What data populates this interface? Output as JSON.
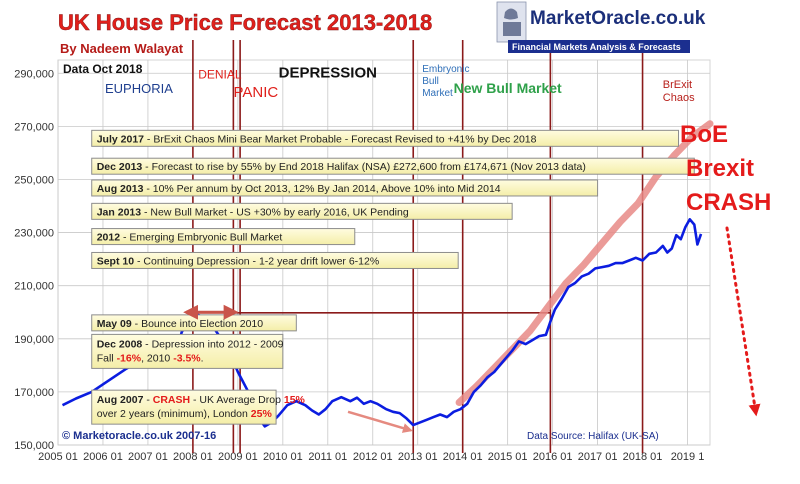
{
  "chart_data": {
    "type": "line",
    "title": "UK House Price Forecast 2013-2018",
    "subtitle": "By Nadeem Walayat",
    "data_label": "Data Oct 2018",
    "brand": {
      "name": "MarketOracle.co.uk",
      "tagline": "Financial Markets Analysis & Forecasts"
    },
    "copyright": "© Marketoracle.co.uk 2007-16",
    "source": "Data Source: Halifax (UK-SA)",
    "ylim": [
      150000,
      295000
    ],
    "xlim": [
      2005.0,
      2019.5
    ],
    "y_ticks": [
      {
        "value": 150000,
        "label": "150,000"
      },
      {
        "value": 170000,
        "label": "170,000"
      },
      {
        "value": 190000,
        "label": "190,000"
      },
      {
        "value": 210000,
        "label": "210,000"
      },
      {
        "value": 230000,
        "label": "230,000"
      },
      {
        "value": 250000,
        "label": "250,000"
      },
      {
        "value": 270000,
        "label": "270,000"
      },
      {
        "value": 290000,
        "label": "290,000"
      }
    ],
    "x_ticks": [
      {
        "value": 2005,
        "label": "2005 01"
      },
      {
        "value": 2006,
        "label": "2006 01"
      },
      {
        "value": 2007,
        "label": "2007 01"
      },
      {
        "value": 2008,
        "label": "2008 01"
      },
      {
        "value": 2009,
        "label": "2009 01"
      },
      {
        "value": 2010,
        "label": "2010 01"
      },
      {
        "value": 2011,
        "label": "2011 01"
      },
      {
        "value": 2012,
        "label": "2012 01"
      },
      {
        "value": 2013,
        "label": "2013 01"
      },
      {
        "value": 2014,
        "label": "2014 01"
      },
      {
        "value": 2015,
        "label": "2015 01"
      },
      {
        "value": 2016,
        "label": "2016 01"
      },
      {
        "value": 2017,
        "label": "2017 01"
      },
      {
        "value": 2018,
        "label": "2018 01"
      },
      {
        "value": 2019,
        "label": "2019 1"
      }
    ],
    "phase_lines": [
      2008.0,
      2008.9,
      2009.05,
      2012.9,
      2014.0,
      2015.95,
      2018.0
    ],
    "phases": [
      {
        "label": "EUPHORIA",
        "x": 2006.8,
        "y": 282500,
        "color": "#1f3f8f",
        "size": 13,
        "weight": "normal"
      },
      {
        "label": "DENIAL",
        "x": 2008.6,
        "y": 288000,
        "color": "#e0201b",
        "size": 12,
        "weight": "normal"
      },
      {
        "label": "PANIC",
        "x": 2009.4,
        "y": 281000,
        "color": "#e0201b",
        "size": 15,
        "weight": "normal"
      },
      {
        "label": "DEPRESSION",
        "x": 2011.0,
        "y": 288500,
        "color": "#111111",
        "size": 15,
        "weight": "bold"
      },
      {
        "label": "New Bull Market",
        "x": 2015.0,
        "y": 282500,
        "color": "#2fa14a",
        "size": 14,
        "weight": "bold"
      }
    ],
    "phase_multiline": [
      {
        "lines": [
          "Embryonic",
          "Bull",
          "Market"
        ],
        "x": 2013.1,
        "y": 290500,
        "color": "#2f6fb8",
        "size": 10
      },
      {
        "lines": [
          "BrExit",
          "Chaos"
        ],
        "x": 2018.45,
        "y": 284500,
        "color": "#b8201b",
        "size": 11
      }
    ],
    "annotations": [
      {
        "date": "July 2017",
        "text": " - BrExit Chaos Mini Bear Market Probable - Forecast Revised to +41% by Dec 2018",
        "date_color": "#111111",
        "y": 265500,
        "x0": 2005.75,
        "x1": 2018.8
      },
      {
        "date": "Dec 2013",
        "text": " - Forecast to rise by 55% by End 2018 Halifax (NSA) £272,600 from £174,671 (Nov 2013 data)",
        "date_color": "#111111",
        "y": 255000,
        "x0": 2005.75,
        "x1": 2019.15
      },
      {
        "date": "Aug 2013",
        "text": " - 10% Per annum by Oct 2013, 12% By Jan 2014, Above 10% into Mid 2014",
        "date_color": "#111111",
        "y": 246800,
        "x0": 2005.75,
        "x1": 2017.0
      },
      {
        "date": "Jan 2013",
        "text": " - New Bull Market - US +30% by early 2016, UK Pending",
        "date_color": "#111111",
        "y": 238000,
        "x0": 2005.75,
        "x1": 2015.1
      },
      {
        "date": "2012",
        "text": " - Emerging Embryonic Bull Market",
        "date_color": "#111111",
        "y": 228500,
        "x0": 2005.75,
        "x1": 2011.6
      },
      {
        "date": "Sept 10",
        "text": " -  Continuing Depression - 1-2 year drift lower 6-12%",
        "date_color": "#111111",
        "y": 219500,
        "x0": 2005.75,
        "x1": 2013.9
      },
      {
        "date": "May 09",
        "text": " - Bounce into Election 2010",
        "date_color": "#111111",
        "y": 196000,
        "x0": 2005.75,
        "x1": 2010.3
      }
    ],
    "box_dec2008": {
      "line1_date": "Dec 2008",
      "line1_text": " - Depression into 2012 - 2009",
      "line2_a": "Fall ",
      "line2_b": "-16%",
      "line2_c": ", 2010 ",
      "line2_d": "-3.5%",
      "line2_e": ".",
      "y1": 186000,
      "y2": 178500
    },
    "box_aug2007": {
      "line1_date": "Aug 2007",
      "line1_a": " - ",
      "line1_b": "CRASH",
      "line1_c": " - UK Average Drop ",
      "line1_d": "15%",
      "line2_a": "over 2 years  (minimum), London ",
      "line2_b": "25%",
      "y1": 165500,
      "y2": 158800
    },
    "boe_crash": {
      "lines": [
        "BoE",
        "Brexit",
        "CRASH"
      ],
      "color": "#e41b1b"
    },
    "colors": {
      "actual": "#0b1de0",
      "forecast": "#e78a86",
      "phase_line": "#8b1a1a",
      "box_fill": "#fbf7cf",
      "box_border": "#8c8c8c",
      "crash": "#e41b1b",
      "grid": "#c8c8c8"
    },
    "series": [
      {
        "name": "Halifax House Price (UK-SA)",
        "points": [
          [
            2005.1,
            165000
          ],
          [
            2005.4,
            167500
          ],
          [
            2005.75,
            170000
          ],
          [
            2006.1,
            174000
          ],
          [
            2006.5,
            178500
          ],
          [
            2006.9,
            182500
          ],
          [
            2007.3,
            186000
          ],
          [
            2007.55,
            188500
          ],
          [
            2007.65,
            186000
          ],
          [
            2007.75,
            192500
          ],
          [
            2007.9,
            196800
          ],
          [
            2008.05,
            199500
          ],
          [
            2008.25,
            198000
          ],
          [
            2008.45,
            194500
          ],
          [
            2008.65,
            189500
          ],
          [
            2008.85,
            183500
          ],
          [
            2009.0,
            177500
          ],
          [
            2009.2,
            171000
          ],
          [
            2009.35,
            165500
          ],
          [
            2009.45,
            160500
          ],
          [
            2009.6,
            157000
          ],
          [
            2009.75,
            158500
          ],
          [
            2009.9,
            161000
          ],
          [
            2010.1,
            165000
          ],
          [
            2010.3,
            166500
          ],
          [
            2010.5,
            165000
          ],
          [
            2010.65,
            163000
          ],
          [
            2010.8,
            161500
          ],
          [
            2010.95,
            163500
          ],
          [
            2011.1,
            166500
          ],
          [
            2011.3,
            168000
          ],
          [
            2011.5,
            166500
          ],
          [
            2011.65,
            167800
          ],
          [
            2011.8,
            165500
          ],
          [
            2011.95,
            166500
          ],
          [
            2012.1,
            165500
          ],
          [
            2012.3,
            163500
          ],
          [
            2012.45,
            162500
          ],
          [
            2012.6,
            162000
          ],
          [
            2012.75,
            160000
          ],
          [
            2012.9,
            157500
          ],
          [
            2013.05,
            158500
          ],
          [
            2013.2,
            159500
          ],
          [
            2013.35,
            160500
          ],
          [
            2013.5,
            161500
          ],
          [
            2013.65,
            160500
          ],
          [
            2013.8,
            162500
          ],
          [
            2013.95,
            163500
          ],
          [
            2014.1,
            165500
          ],
          [
            2014.25,
            170000
          ],
          [
            2014.4,
            172500
          ],
          [
            2014.55,
            175500
          ],
          [
            2014.7,
            177500
          ],
          [
            2014.85,
            180500
          ],
          [
            2014.95,
            182500
          ],
          [
            2015.1,
            185500
          ],
          [
            2015.25,
            189000
          ],
          [
            2015.4,
            188000
          ],
          [
            2015.55,
            189500
          ],
          [
            2015.7,
            191000
          ],
          [
            2015.85,
            191500
          ],
          [
            2015.95,
            196500
          ],
          [
            2016.05,
            201000
          ],
          [
            2016.2,
            205000
          ],
          [
            2016.35,
            209500
          ],
          [
            2016.5,
            211000
          ],
          [
            2016.65,
            213500
          ],
          [
            2016.8,
            214500
          ],
          [
            2016.95,
            216500
          ],
          [
            2017.1,
            217000
          ],
          [
            2017.25,
            217500
          ],
          [
            2017.4,
            218500
          ],
          [
            2017.55,
            218500
          ],
          [
            2017.7,
            219500
          ],
          [
            2017.85,
            220500
          ],
          [
            2018.0,
            219500
          ],
          [
            2018.15,
            222000
          ],
          [
            2018.3,
            222500
          ],
          [
            2018.45,
            225000
          ],
          [
            2018.55,
            222500
          ],
          [
            2018.65,
            224000
          ],
          [
            2018.75,
            229000
          ],
          [
            2018.85,
            227500
          ],
          [
            2018.95,
            232000
          ],
          [
            2019.05,
            235000
          ],
          [
            2019.15,
            233000
          ],
          [
            2019.22,
            225500
          ],
          [
            2019.3,
            229500
          ]
        ]
      }
    ],
    "forecast_band": [
      [
        2013.92,
        166000
      ],
      [
        2014.3,
        172000
      ],
      [
        2014.7,
        179000
      ],
      [
        2015.1,
        186000
      ],
      [
        2015.5,
        193000
      ],
      [
        2015.9,
        202000
      ],
      [
        2016.3,
        211000
      ],
      [
        2016.7,
        218000
      ],
      [
        2017.1,
        226000
      ],
      [
        2017.5,
        234000
      ],
      [
        2017.9,
        241000
      ],
      [
        2018.3,
        251000
      ],
      [
        2018.7,
        259000
      ],
      [
        2019.1,
        266000
      ],
      [
        2019.5,
        271000
      ]
    ],
    "arrows": [
      {
        "name": "top-range",
        "from": [
          2007.85,
          200000
        ],
        "to": [
          2008.95,
          200000
        ],
        "two_way": true
      },
      {
        "name": "decline",
        "from": [
          2011.45,
          162500
        ],
        "to": [
          2012.85,
          155500
        ],
        "two_way": false
      }
    ]
  }
}
